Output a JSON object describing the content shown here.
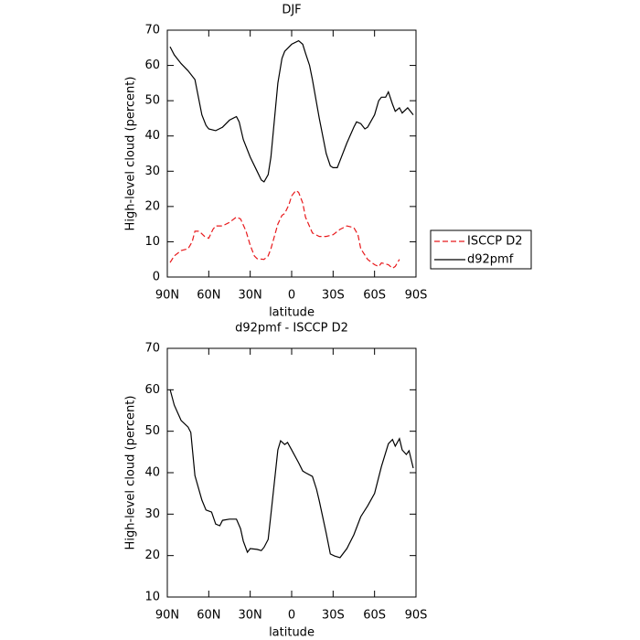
{
  "chart_data": [
    {
      "type": "line",
      "title": "DJF",
      "x_label": "latitude",
      "y_label": "High-level cloud (percent)",
      "xlim": [
        90,
        -90
      ],
      "ylim": [
        0,
        70
      ],
      "xticks": [
        {
          "value": 90,
          "label": "90N"
        },
        {
          "value": 60,
          "label": "60N"
        },
        {
          "value": 30,
          "label": "30N"
        },
        0,
        {
          "value": -30,
          "label": "30S"
        },
        {
          "value": -60,
          "label": "60S"
        },
        {
          "value": -90,
          "label": "90S"
        }
      ],
      "yticks": [
        0,
        10,
        20,
        30,
        40,
        50,
        60,
        70
      ],
      "legend": "right",
      "series": [
        {
          "name": "ISCCP D2",
          "color": "#e8191c",
          "dash": "6,3",
          "x": [
            88,
            85,
            80,
            75,
            72,
            70,
            67,
            63,
            60,
            57,
            55,
            50,
            45,
            40,
            37,
            33,
            30,
            27,
            25,
            20,
            17,
            15,
            10,
            7,
            5,
            2,
            0,
            -3,
            -5,
            -8,
            -10,
            -15,
            -20,
            -25,
            -30,
            -35,
            -40,
            -45,
            -48,
            -50,
            -55,
            -60,
            -63,
            -65,
            -70,
            -73,
            -75,
            -78
          ],
          "values": [
            4.1,
            6,
            7.5,
            8,
            10,
            13,
            13,
            11.5,
            11,
            13.5,
            14.5,
            14.5,
            15.5,
            17,
            16.5,
            13,
            9,
            6,
            5.2,
            5,
            6,
            8,
            15,
            17.5,
            18,
            20.5,
            23,
            24.5,
            24,
            21,
            17,
            12.5,
            11.5,
            11.5,
            12,
            13.5,
            14.5,
            14,
            12,
            8,
            5,
            3.5,
            3,
            4,
            3.5,
            2.5,
            3,
            5
          ]
        },
        {
          "name": "d92pmf",
          "color": "#000000",
          "x": [
            88,
            85,
            80,
            75,
            70,
            65,
            62,
            60,
            55,
            50,
            45,
            40,
            38,
            35,
            30,
            25,
            22,
            20,
            17,
            15,
            10,
            7,
            5,
            0,
            -5,
            -8,
            -10,
            -13,
            -15,
            -20,
            -25,
            -28,
            -30,
            -33,
            -35,
            -40,
            -45,
            -47,
            -50,
            -53,
            -55,
            -60,
            -63,
            -65,
            -68,
            -70,
            -73,
            -75,
            -78,
            -80,
            -84,
            -88
          ],
          "values": [
            65.3,
            63,
            60.5,
            58.5,
            56,
            46,
            43,
            42,
            41.5,
            42.5,
            44.5,
            45.5,
            44,
            39,
            34,
            30,
            27.5,
            27,
            29,
            34,
            55,
            62,
            64,
            66,
            67,
            66,
            63.5,
            60,
            56,
            45,
            35,
            31.5,
            31,
            31,
            33,
            38,
            42.5,
            44,
            43.5,
            42,
            42.5,
            46,
            50,
            51,
            51,
            52.5,
            49,
            47,
            48,
            46.5,
            48,
            46
          ]
        }
      ]
    },
    {
      "type": "line",
      "title": "d92pmf - ISCCP D2",
      "x_label": "latitude",
      "y_label": "High-level cloud (percent)",
      "xlim": [
        90,
        -90
      ],
      "ylim": [
        10,
        70
      ],
      "xticks": [
        {
          "value": 90,
          "label": "90N"
        },
        {
          "value": 60,
          "label": "60N"
        },
        {
          "value": 30,
          "label": "30N"
        },
        0,
        {
          "value": -30,
          "label": "30S"
        },
        {
          "value": -60,
          "label": "60S"
        },
        {
          "value": -90,
          "label": "90S"
        }
      ],
      "yticks": [
        10,
        20,
        30,
        40,
        50,
        60,
        70
      ],
      "series": [
        {
          "color": "#000000",
          "x": [
            88,
            85,
            80,
            75,
            73,
            70,
            65,
            62,
            58,
            55,
            52,
            50,
            45,
            40,
            37,
            35,
            32,
            30,
            25,
            22,
            20,
            17,
            15,
            10,
            8,
            5,
            3,
            0,
            -5,
            -8,
            -10,
            -15,
            -18,
            -20,
            -25,
            -28,
            -31,
            -35,
            -40,
            -45,
            -50,
            -55,
            -60,
            -65,
            -70,
            -73,
            -75,
            -78,
            -80,
            -83,
            -85,
            -88
          ],
          "values": [
            60.1,
            56.3,
            52.6,
            51,
            49.7,
            39.3,
            33.4,
            31,
            30.5,
            27.6,
            27.2,
            28.5,
            28.8,
            28.8,
            26.5,
            23.5,
            20.8,
            21.7,
            21.5,
            21.2,
            22,
            23.9,
            29.9,
            45.5,
            47.7,
            46.8,
            47.3,
            45.5,
            42.4,
            40.4,
            40,
            39.1,
            36,
            33.2,
            25.4,
            20.4,
            19.9,
            19.5,
            21.7,
            25,
            29.4,
            32,
            35,
            41.5,
            47,
            48,
            46.4,
            48.2,
            45.5,
            44.4,
            45.3,
            41.1
          ]
        }
      ]
    }
  ]
}
